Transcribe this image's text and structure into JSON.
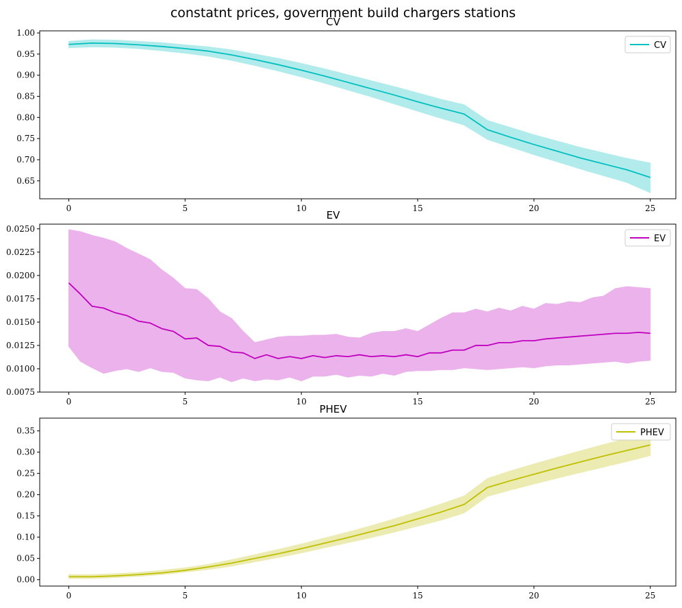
{
  "figure": {
    "title": "constatnt prices, government build chargers stations"
  },
  "chart_data": [
    {
      "type": "area",
      "title": "CV",
      "xlabel": "",
      "ylabel": "",
      "xlim": [
        -1.25,
        26.1
      ],
      "ylim": [
        0.6075,
        1.005
      ],
      "xticks": [
        0,
        5,
        10,
        15,
        20,
        25
      ],
      "yticks": [
        0.65,
        0.7,
        0.75,
        0.8,
        0.85,
        0.9,
        0.95,
        1.0
      ],
      "ytick_labels": [
        "0.65",
        "0.70",
        "0.75",
        "0.80",
        "0.85",
        "0.90",
        "0.95",
        "1.00"
      ],
      "legend_position": "top-right",
      "grid": false,
      "series": [
        {
          "name": "CV",
          "color": "#00bfbf",
          "fill": "#b2ebeb",
          "x": [
            0,
            1,
            2,
            3,
            4,
            5,
            6,
            7,
            8,
            9,
            10,
            11,
            12,
            13,
            14,
            15,
            16,
            17,
            18,
            19,
            20,
            21,
            22,
            23,
            24,
            25
          ],
          "y": [
            0.973,
            0.976,
            0.975,
            0.972,
            0.968,
            0.963,
            0.957,
            0.948,
            0.937,
            0.925,
            0.912,
            0.898,
            0.883,
            0.868,
            0.853,
            0.837,
            0.822,
            0.808,
            0.771,
            0.753,
            0.736,
            0.72,
            0.704,
            0.69,
            0.676,
            0.658
          ],
          "lower": [
            0.965,
            0.967,
            0.966,
            0.963,
            0.958,
            0.952,
            0.945,
            0.935,
            0.923,
            0.91,
            0.896,
            0.881,
            0.865,
            0.849,
            0.832,
            0.815,
            0.798,
            0.782,
            0.748,
            0.73,
            0.712,
            0.695,
            0.678,
            0.662,
            0.646,
            0.622
          ],
          "upper": [
            0.98,
            0.984,
            0.983,
            0.98,
            0.977,
            0.972,
            0.967,
            0.96,
            0.95,
            0.94,
            0.928,
            0.915,
            0.901,
            0.887,
            0.873,
            0.858,
            0.843,
            0.83,
            0.793,
            0.776,
            0.759,
            0.744,
            0.729,
            0.716,
            0.703,
            0.692
          ]
        }
      ]
    },
    {
      "type": "area",
      "title": "EV",
      "xlabel": "",
      "ylabel": "",
      "xlim": [
        -1.25,
        26.1
      ],
      "ylim": [
        0.0075,
        0.0255
      ],
      "xticks": [
        0,
        5,
        10,
        15,
        20,
        25
      ],
      "yticks": [
        0.0075,
        0.01,
        0.0125,
        0.015,
        0.0175,
        0.02,
        0.0225,
        0.025
      ],
      "ytick_labels": [
        "0.0075",
        "0.0100",
        "0.0125",
        "0.0150",
        "0.0175",
        "0.0200",
        "0.0225",
        "0.0250"
      ],
      "legend_position": "top-right",
      "grid": false,
      "series": [
        {
          "name": "EV",
          "color": "#bf00bf",
          "fill": "#ebb2eb",
          "x": [
            0,
            0.5,
            1,
            1.5,
            2,
            2.5,
            3,
            3.5,
            4,
            4.5,
            5,
            5.5,
            6,
            6.5,
            7,
            7.5,
            8,
            8.5,
            9,
            9.5,
            10,
            10.5,
            11,
            11.5,
            12,
            12.5,
            13,
            13.5,
            14,
            14.5,
            15,
            15.5,
            16,
            16.5,
            17,
            17.5,
            18,
            18.5,
            19,
            19.5,
            20,
            20.5,
            21,
            21.5,
            22,
            22.5,
            23,
            23.5,
            24,
            24.5,
            25
          ],
          "y": [
            0.0192,
            0.018,
            0.0167,
            0.0165,
            0.016,
            0.0157,
            0.0151,
            0.0149,
            0.0143,
            0.014,
            0.0132,
            0.0133,
            0.0125,
            0.0124,
            0.0118,
            0.0117,
            0.0111,
            0.0115,
            0.0111,
            0.0113,
            0.0111,
            0.0114,
            0.0112,
            0.0114,
            0.0113,
            0.0115,
            0.0113,
            0.0114,
            0.0113,
            0.0115,
            0.0113,
            0.0117,
            0.0117,
            0.012,
            0.012,
            0.0125,
            0.0125,
            0.0128,
            0.0128,
            0.013,
            0.013,
            0.0132,
            0.0133,
            0.0134,
            0.0135,
            0.0136,
            0.0137,
            0.0138,
            0.0138,
            0.0139,
            0.0138
          ],
          "lower": [
            0.0124,
            0.0108,
            0.0101,
            0.0095,
            0.0098,
            0.01,
            0.0097,
            0.0101,
            0.0097,
            0.0096,
            0.009,
            0.0088,
            0.0087,
            0.0091,
            0.0086,
            0.009,
            0.0087,
            0.0089,
            0.0088,
            0.0091,
            0.0087,
            0.0092,
            0.0092,
            0.0094,
            0.0091,
            0.0093,
            0.0092,
            0.0095,
            0.0093,
            0.0097,
            0.0098,
            0.0098,
            0.0099,
            0.0099,
            0.0101,
            0.01,
            0.0099,
            0.01,
            0.0101,
            0.0102,
            0.0101,
            0.0103,
            0.0104,
            0.0104,
            0.0105,
            0.0106,
            0.0107,
            0.0108,
            0.0106,
            0.0108,
            0.0109
          ],
          "upper": [
            0.0249,
            0.0247,
            0.0243,
            0.024,
            0.0236,
            0.0229,
            0.0223,
            0.0217,
            0.0206,
            0.0197,
            0.0186,
            0.0185,
            0.0175,
            0.0161,
            0.0154,
            0.014,
            0.0128,
            0.0131,
            0.0134,
            0.0135,
            0.0135,
            0.0136,
            0.0136,
            0.0137,
            0.0134,
            0.0133,
            0.0138,
            0.014,
            0.014,
            0.0143,
            0.014,
            0.0147,
            0.0154,
            0.016,
            0.016,
            0.0164,
            0.0161,
            0.0165,
            0.0162,
            0.0167,
            0.0164,
            0.017,
            0.0169,
            0.0172,
            0.0171,
            0.0176,
            0.0178,
            0.0186,
            0.0188,
            0.0187,
            0.0186
          ]
        }
      ]
    },
    {
      "type": "area",
      "title": "PHEV",
      "xlabel": "",
      "ylabel": "",
      "xlim": [
        -1.25,
        26.1
      ],
      "ylim": [
        -0.015,
        0.38
      ],
      "xticks": [
        0,
        5,
        10,
        15,
        20,
        25
      ],
      "yticks": [
        0.0,
        0.05,
        0.1,
        0.15,
        0.2,
        0.25,
        0.3,
        0.35
      ],
      "ytick_labels": [
        "0.00",
        "0.05",
        "0.10",
        "0.15",
        "0.20",
        "0.25",
        "0.30",
        "0.35"
      ],
      "legend_position": "top-right",
      "grid": false,
      "series": [
        {
          "name": "PHEV",
          "color": "#bfbf00",
          "fill": "#ebebb2",
          "x": [
            0,
            1,
            2,
            3,
            4,
            5,
            6,
            7,
            8,
            9,
            10,
            11,
            12,
            13,
            14,
            15,
            16,
            17,
            18,
            19,
            20,
            21,
            22,
            23,
            24,
            25
          ],
          "y": [
            0.007,
            0.007,
            0.009,
            0.012,
            0.016,
            0.022,
            0.03,
            0.039,
            0.05,
            0.061,
            0.073,
            0.086,
            0.099,
            0.113,
            0.127,
            0.143,
            0.159,
            0.177,
            0.217,
            0.233,
            0.248,
            0.263,
            0.277,
            0.291,
            0.304,
            0.317
          ],
          "lower": [
            0.003,
            0.003,
            0.005,
            0.008,
            0.012,
            0.018,
            0.024,
            0.032,
            0.042,
            0.052,
            0.063,
            0.075,
            0.087,
            0.099,
            0.112,
            0.126,
            0.14,
            0.157,
            0.196,
            0.211,
            0.225,
            0.239,
            0.252,
            0.265,
            0.278,
            0.292
          ],
          "upper": [
            0.012,
            0.012,
            0.014,
            0.017,
            0.022,
            0.028,
            0.036,
            0.047,
            0.059,
            0.071,
            0.084,
            0.098,
            0.112,
            0.127,
            0.143,
            0.16,
            0.178,
            0.197,
            0.238,
            0.256,
            0.272,
            0.288,
            0.303,
            0.318,
            0.332,
            0.345
          ]
        }
      ]
    }
  ]
}
